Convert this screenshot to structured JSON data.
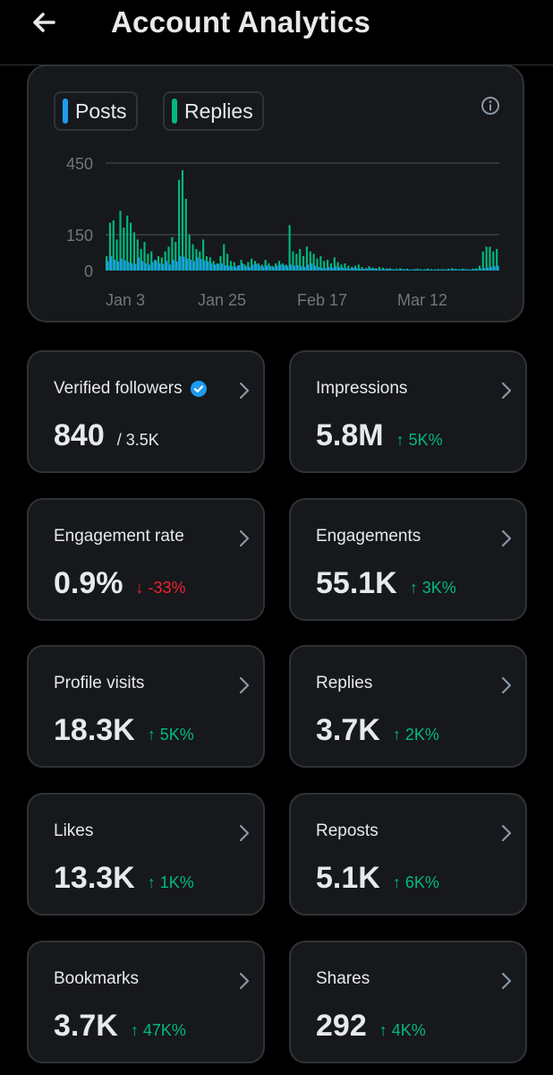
{
  "header": {
    "title": "Account Analytics"
  },
  "legend": {
    "posts": "Posts",
    "replies": "Replies",
    "posts_color": "#1d9bf0",
    "replies_color": "#00ba7c"
  },
  "chart_data": {
    "type": "bar",
    "series": [
      {
        "name": "Posts",
        "values": [
          40,
          60,
          45,
          38,
          50,
          42,
          35,
          30,
          28,
          55,
          40,
          30,
          25,
          35,
          42,
          30,
          28,
          40,
          25,
          45,
          38,
          60,
          58,
          50,
          45,
          40,
          55,
          48,
          42,
          38,
          30,
          25,
          28,
          30,
          22,
          20,
          18,
          15,
          22,
          30,
          18,
          15,
          25,
          28,
          20,
          16,
          22,
          18,
          15,
          20,
          25,
          22,
          18,
          25,
          20,
          22,
          18,
          15,
          25,
          30,
          20,
          15,
          12,
          10,
          15,
          12,
          18,
          14,
          12,
          10,
          8,
          12,
          10,
          8,
          6,
          8,
          10,
          8,
          6,
          5,
          6,
          8,
          6,
          5,
          4,
          6,
          5,
          4,
          3,
          5,
          4,
          3,
          5,
          4,
          3,
          4,
          3,
          5,
          4,
          3,
          6,
          5,
          4,
          6,
          5,
          4,
          6,
          5,
          8,
          10,
          12,
          15,
          18,
          20
        ]
      },
      {
        "name": "Replies",
        "values": [
          60,
          200,
          210,
          130,
          250,
          180,
          230,
          200,
          160,
          130,
          90,
          120,
          70,
          80,
          45,
          60,
          55,
          80,
          100,
          140,
          120,
          380,
          420,
          300,
          150,
          110,
          90,
          80,
          130,
          60,
          55,
          40,
          30,
          60,
          110,
          70,
          40,
          35,
          20,
          45,
          25,
          35,
          50,
          40,
          30,
          25,
          45,
          30,
          20,
          30,
          40,
          30,
          25,
          190,
          80,
          70,
          90,
          60,
          100,
          80,
          70,
          50,
          60,
          40,
          45,
          30,
          55,
          35,
          25,
          30,
          20,
          15,
          20,
          25,
          15,
          10,
          18,
          12,
          10,
          15,
          12,
          8,
          10,
          6,
          8,
          10,
          6,
          8,
          5,
          6,
          8,
          6,
          5,
          8,
          6,
          5,
          7,
          6,
          5,
          8,
          10,
          7,
          6,
          8,
          6,
          5,
          8,
          9,
          20,
          80,
          100,
          100,
          80,
          90
        ]
      }
    ],
    "x_tick_labels": [
      "Jan 3",
      "Jan 25",
      "Feb 17",
      "Mar 12"
    ],
    "y_tick_labels": [
      "450",
      "150",
      "0"
    ],
    "ylim": [
      0,
      450
    ],
    "grid": true
  },
  "cards": [
    {
      "label": "Verified followers",
      "value": "840",
      "sub": "/ 3.5K",
      "verified": true
    },
    {
      "label": "Impressions",
      "value": "5.8M",
      "change": "↑ 5K%",
      "dir": "up"
    },
    {
      "label": "Engagement rate",
      "value": "0.9%",
      "change": "↓ -33%",
      "dir": "down"
    },
    {
      "label": "Engagements",
      "value": "55.1K",
      "change": "↑ 3K%",
      "dir": "up"
    },
    {
      "label": "Profile visits",
      "value": "18.3K",
      "change": "↑ 5K%",
      "dir": "up"
    },
    {
      "label": "Replies",
      "value": "3.7K",
      "change": "↑ 2K%",
      "dir": "up"
    },
    {
      "label": "Likes",
      "value": "13.3K",
      "change": "↑ 1K%",
      "dir": "up"
    },
    {
      "label": "Reposts",
      "value": "5.1K",
      "change": "↑ 6K%",
      "dir": "up"
    },
    {
      "label": "Bookmarks",
      "value": "3.7K",
      "change": "↑ 47K%",
      "dir": "up"
    },
    {
      "label": "Shares",
      "value": "292",
      "change": "↑ 4K%",
      "dir": "up"
    }
  ]
}
